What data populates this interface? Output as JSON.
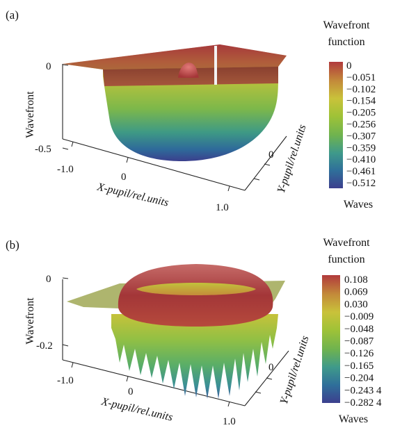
{
  "panels": [
    {
      "label": "(a)",
      "z_ticks": [
        "0",
        "-0.5"
      ],
      "z_label": "Wavefront",
      "x_ticks": [
        "-1.0",
        "0",
        "1.0"
      ],
      "x_label": "X-pupil/rel.units",
      "y_ticks": [
        "0"
      ],
      "y_label": "Y-pupil/rel.units",
      "colorbar": {
        "title_line1": "Wavefront",
        "title_line2": "function",
        "unit": "Waves",
        "ticks": [
          "0",
          "−0.051",
          "−0.102",
          "−0.154",
          "−0.205",
          "−0.256",
          "−0.307",
          "−0.359",
          "−0.410",
          "−0.461",
          "−0.512"
        ],
        "min": -0.512,
        "max": 0,
        "colors": [
          "#3c3f8e",
          "#2f6f9a",
          "#3f9a8a",
          "#6fb34f",
          "#9fc237",
          "#c9c23a",
          "#c38a3a",
          "#b13a3c"
        ]
      }
    },
    {
      "label": "(b)",
      "z_ticks": [
        "0",
        "-0.2"
      ],
      "z_label": "Wavefront",
      "x_ticks": [
        "-1.0",
        "0",
        "1.0"
      ],
      "x_label": "X-pupil/rel.units",
      "y_ticks": [
        "0"
      ],
      "y_label": "Y-pupil/rel.units",
      "colorbar": {
        "title_line1": "Wavefront",
        "title_line2": "function",
        "unit": "Waves",
        "ticks": [
          "0.108",
          "0.069",
          "0.030",
          "−0.009",
          "−0.048",
          "−0.087",
          "−0.126",
          "−0.165",
          "−0.204",
          "−0.243 4",
          "−0.282 4"
        ],
        "min": -0.2824,
        "max": 0.108,
        "colors": [
          "#3c3f8e",
          "#2f6f9a",
          "#3f9a8a",
          "#6fb34f",
          "#9fc237",
          "#c9c23a",
          "#c38a3a",
          "#b13a3c"
        ]
      }
    }
  ]
}
